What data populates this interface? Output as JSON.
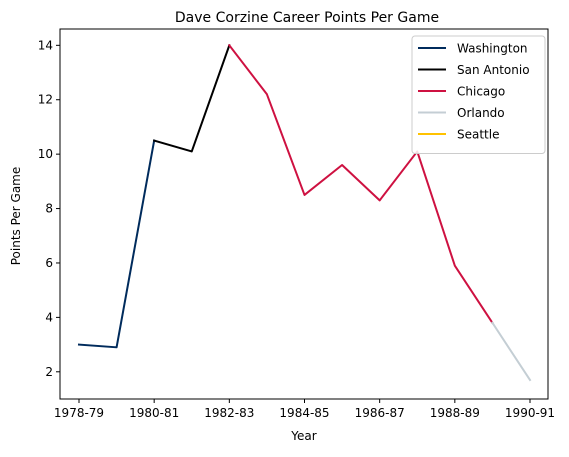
{
  "chart_data": {
    "type": "line",
    "title": "Dave Corzine Career Points Per Game",
    "xlabel": "Year",
    "ylabel": "Points Per Game",
    "x": [
      "1978-79",
      "1979-80",
      "1980-81",
      "1981-82",
      "1982-83",
      "1983-84",
      "1984-85",
      "1985-86",
      "1986-87",
      "1987-88",
      "1988-89",
      "1989-90",
      "1990-91"
    ],
    "x_ticks": [
      "1978-79",
      "1980-81",
      "1982-83",
      "1984-85",
      "1986-87",
      "1988-89",
      "1990-91"
    ],
    "ylim": [
      1.0,
      14.6
    ],
    "y_ticks": [
      2,
      4,
      6,
      8,
      10,
      12,
      14
    ],
    "grid": false,
    "legend_position": "top-right",
    "series": [
      {
        "name": "Washington",
        "color": "#002B5C",
        "points": [
          [
            "1978-79",
            3.0
          ],
          [
            "1979-80",
            2.9
          ],
          [
            "1980-81",
            10.5
          ]
        ]
      },
      {
        "name": "San Antonio",
        "color": "#000000",
        "points": [
          [
            "1980-81",
            10.5
          ],
          [
            "1981-82",
            10.1
          ],
          [
            "1982-83",
            14.0
          ]
        ]
      },
      {
        "name": "Chicago",
        "color": "#CE1141",
        "points": [
          [
            "1982-83",
            14.0
          ],
          [
            "1983-84",
            12.2
          ],
          [
            "1984-85",
            8.5
          ],
          [
            "1985-86",
            9.6
          ],
          [
            "1986-87",
            8.3
          ],
          [
            "1987-88",
            10.1
          ],
          [
            "1988-89",
            5.9
          ],
          [
            "1989-90",
            3.8
          ]
        ]
      },
      {
        "name": "Orlando",
        "color": "#C4CED4",
        "points": [
          [
            "1989-90",
            3.8
          ],
          [
            "1990-91",
            1.7
          ]
        ]
      },
      {
        "name": "Seattle",
        "color": "#FFC200",
        "points": []
      }
    ]
  }
}
